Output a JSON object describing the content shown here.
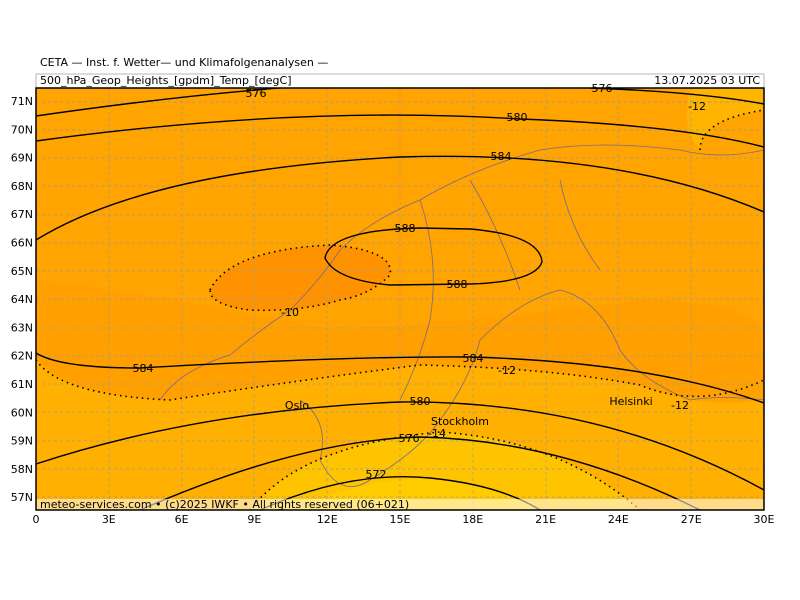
{
  "header": {
    "title": "CETA — Inst. f. Wetter— und Klimafolgenanalysen —",
    "subtitle": "500_hPa_Geop_Heights_[gpdm]_Temp_[degC]",
    "date": "13.07.2025 03 UTC"
  },
  "axes": {
    "lat_labels": [
      "71N",
      "70N",
      "69N",
      "68N",
      "67N",
      "66N",
      "65N",
      "64N",
      "63N",
      "62N",
      "61N",
      "60N",
      "59N",
      "58N",
      "57N"
    ],
    "lon_labels": [
      "0",
      "3E",
      "6E",
      "9E",
      "12E",
      "15E",
      "18E",
      "21E",
      "24E",
      "27E",
      "30E"
    ]
  },
  "contour_labels": [
    "576",
    "576",
    "580",
    "584",
    "588",
    "588",
    "584",
    "584",
    "580",
    "576",
    "572"
  ],
  "temp_labels": [
    "-10",
    "-12",
    "-12",
    "-12",
    "-14"
  ],
  "cities": [
    "Oslo",
    "Stockholm",
    "Helsinki"
  ],
  "footer": "meteo-services.com • (c)2025 IWKF • All rights reserved (06+021)"
}
